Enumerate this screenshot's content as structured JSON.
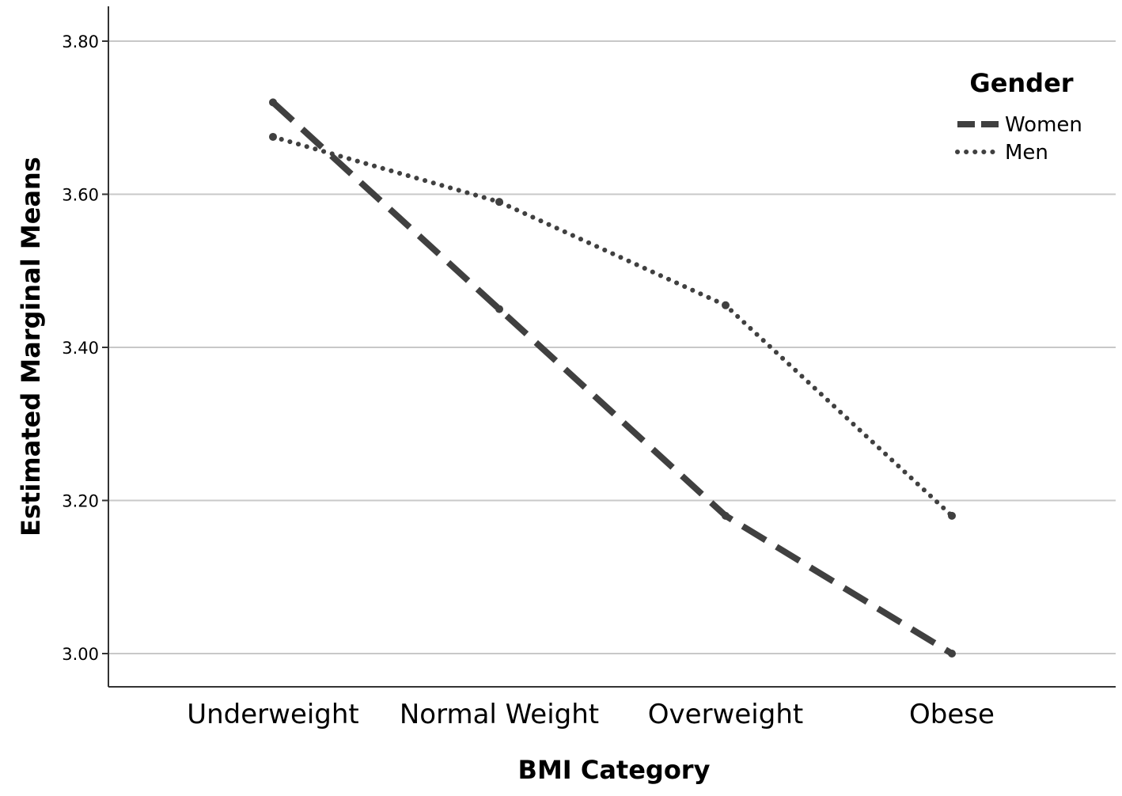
{
  "chart_data": {
    "type": "line",
    "title": "",
    "xlabel": "BMI Category",
    "ylabel": "Estimated Marginal Means",
    "categories": [
      "Underweight",
      "Normal Weight",
      "Overweight",
      "Obese"
    ],
    "ylim": [
      2.96,
      3.81
    ],
    "yticks": [
      3.0,
      3.2,
      3.4,
      3.6,
      3.8
    ],
    "ytick_labels": [
      "3.00",
      "3.20",
      "3.40",
      "3.60",
      "3.80"
    ],
    "grid": true,
    "legend": {
      "title": "Gender",
      "placement": "top-right"
    },
    "series": [
      {
        "name": "Women",
        "style": "dashed",
        "color": "#404040",
        "values": [
          3.72,
          3.45,
          3.18,
          3.0
        ]
      },
      {
        "name": "Men",
        "style": "dotted",
        "color": "#404040",
        "values": [
          3.675,
          3.59,
          3.455,
          3.18
        ]
      }
    ]
  }
}
